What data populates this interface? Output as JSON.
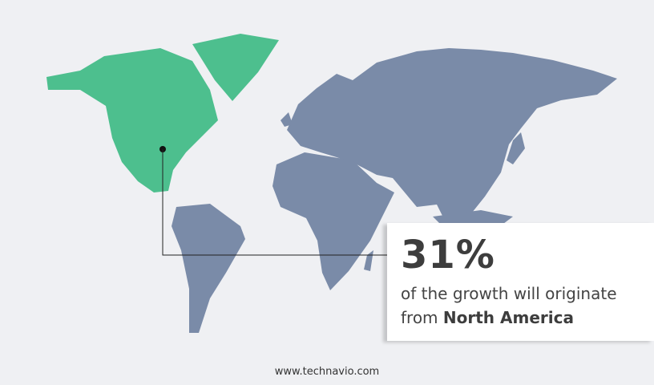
{
  "colors": {
    "highlight_region": "#4dbf8e",
    "other_regions": "#7a8ba8",
    "background": "#eff0f3"
  },
  "highlighted_region": "North America",
  "callout": {
    "percentage": "31%",
    "line1": "of the growth will originate",
    "line2_prefix": "from",
    "line2_region": "North America"
  },
  "footer": {
    "url": "www.technavio.com"
  }
}
